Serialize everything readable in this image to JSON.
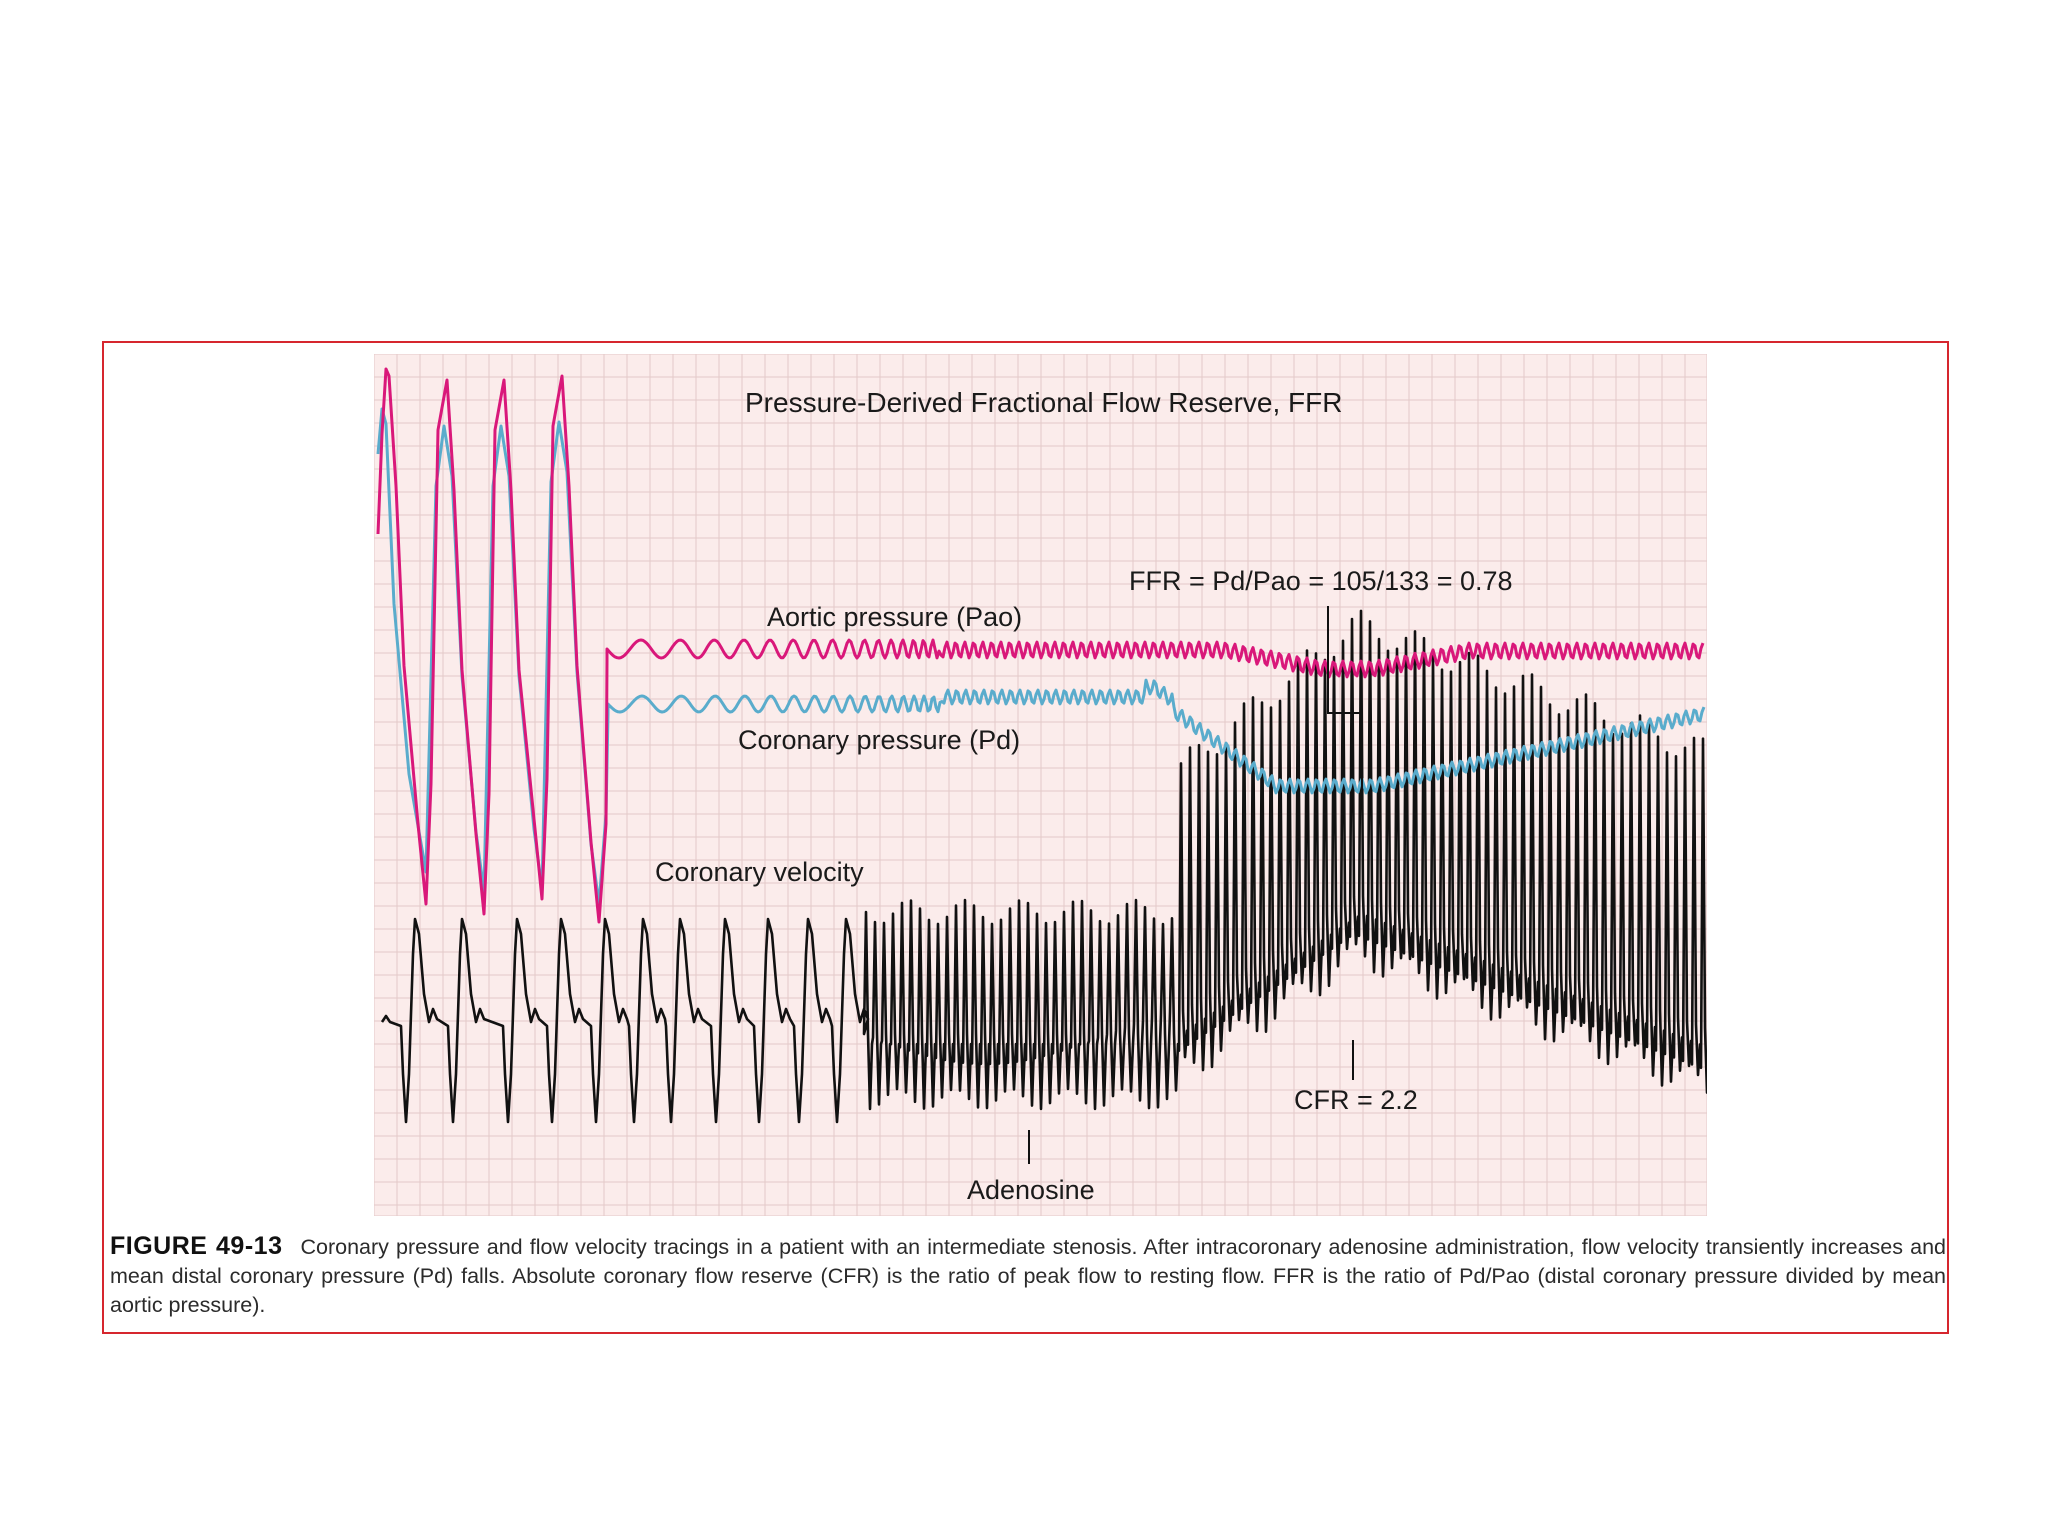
{
  "figure": {
    "title": "Pressure-Derived Fractional Flow Reserve, FFR",
    "labels": {
      "ffr_formula": "FFR = Pd/Pao = 105/133 = 0.78",
      "aortic": "Aortic pressure (Pao)",
      "coronary_pressure": "Coronary pressure (Pd)",
      "velocity": "Coronary velocity",
      "cfr": "CFR = 2.2",
      "adenosine": "Adenosine"
    },
    "colors": {
      "aortic": "#d9187a",
      "coronary_pressure": "#5aaccc",
      "velocity": "#111111",
      "grid_bg": "#fbeceb",
      "grid_line": "#e3c9c8",
      "frame": "#d6262e"
    }
  },
  "caption": {
    "label": "FIGURE 49-13",
    "text": "Coronary pressure and flow velocity tracings in a patient with an intermediate stenosis. After intracoronary adenosine administration, flow velocity transiently increases and mean distal coronary pressure (Pd) falls. Absolute coronary flow reserve (CFR) is the ratio of peak flow to resting flow. FFR is the ratio of Pd/Pao (distal coronary pressure divided by mean aortic pressure)."
  }
}
